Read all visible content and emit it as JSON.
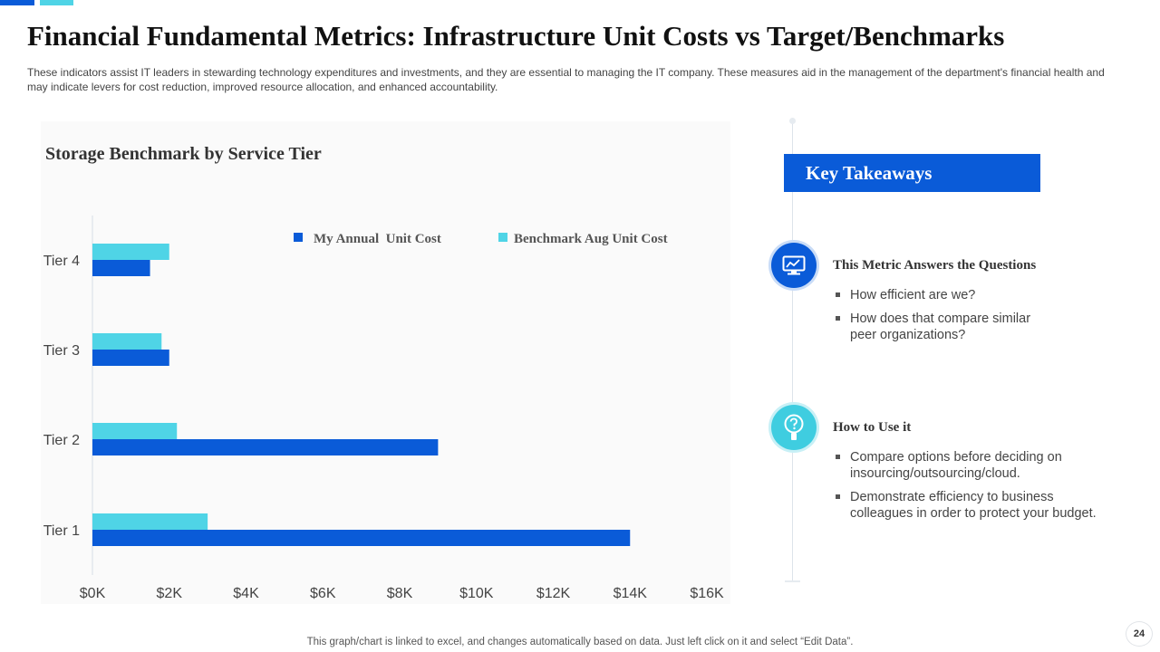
{
  "slide": {
    "title": "Financial Fundamental Metrics: Infrastructure Unit Costs vs Target/Benchmarks",
    "subtitle": "These indicators assist IT leaders in stewarding technology expenditures and investments, and they are essential to managing the IT company. These measures aid in the management of the department's financial health and may indicate levers for cost reduction, improved resource allocation, and enhanced accountability.",
    "footnote": "This graph/chart is linked to excel, and changes automatically based on data. Just left click on it and select “Edit Data”.",
    "page_number": "24"
  },
  "colors": {
    "primary": "#0a5bd8",
    "secondary": "#4fd4e6"
  },
  "chart_data": {
    "type": "bar",
    "orientation": "horizontal",
    "title": "Storage Benchmark by Service Tier",
    "categories": [
      "Tier 4",
      "Tier 3",
      "Tier 2",
      "Tier 1"
    ],
    "series": [
      {
        "name": "My Annual  Unit Cost",
        "color": "#0a5bd8",
        "values": [
          1500,
          2000,
          9000,
          14000
        ]
      },
      {
        "name": "Benchmark Aug Unit Cost",
        "color": "#4fd4e6",
        "values": [
          2000,
          1800,
          2200,
          3000
        ]
      }
    ],
    "xlim": [
      0,
      16000
    ],
    "x_ticks": [
      "$0K",
      "$2K",
      "$4K",
      "$6K",
      "$8K",
      "$10K",
      "$12K",
      "$14K",
      "$16K"
    ],
    "legend_position": "top-right",
    "grid": false
  },
  "takeaways": {
    "heading": "Key Takeaways",
    "icons": [
      "monitor-chart-icon",
      "lightbulb-question-icon"
    ],
    "sections": [
      {
        "title": "This Metric Answers the Questions",
        "bullets": [
          "How efficient are we?",
          "How does that compare similar peer organizations?"
        ]
      },
      {
        "title": "How to Use it",
        "bullets": [
          "Compare options before deciding on insourcing/outsourcing/cloud.",
          "Demonstrate efficiency to business colleagues in order to protect your budget."
        ]
      }
    ]
  }
}
